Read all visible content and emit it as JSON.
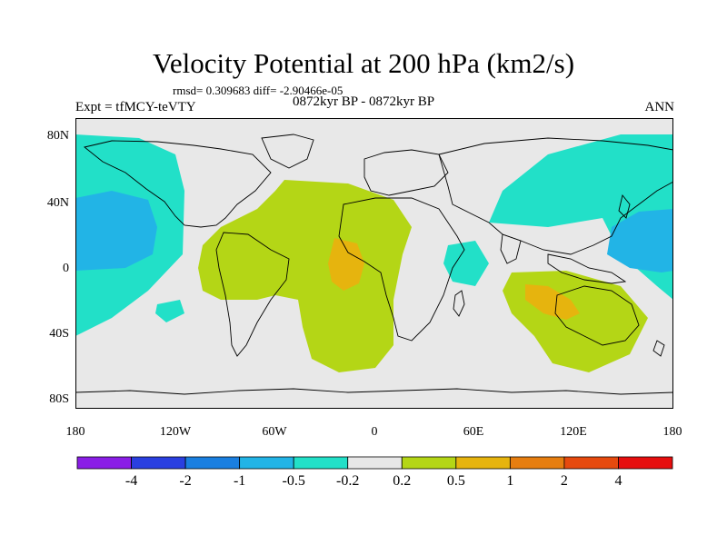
{
  "title": "Velocity Potential at 200 hPa (km2/s)",
  "stats": "rmsd= 0.309683  diff= -2.90466e-05",
  "experiment": "Expt = tfMCY-teVTY",
  "period": "0872kyr BP - 0872kyr BP",
  "season": "ANN",
  "map": {
    "lat_labels": [
      "80N",
      "40N",
      "0",
      "40S",
      "80S"
    ],
    "lon_labels": [
      "180",
      "120W",
      "60W",
      "0",
      "60E",
      "120E",
      "180"
    ],
    "background_color": "#e8e8e8",
    "land_outline_color": "#000000"
  },
  "colorbar": {
    "labels": [
      "-4",
      "-2",
      "-1",
      "-0.5",
      "-0.2",
      "0.2",
      "0.5",
      "1",
      "2",
      "4"
    ],
    "colors": [
      "#8a1ee6",
      "#2a3fe0",
      "#1a7fe0",
      "#22b4e6",
      "#22e0c8",
      "#e8e8e8",
      "#b4d616",
      "#e6b40e",
      "#e67e10",
      "#e64a0e",
      "#e60e0e"
    ]
  }
}
